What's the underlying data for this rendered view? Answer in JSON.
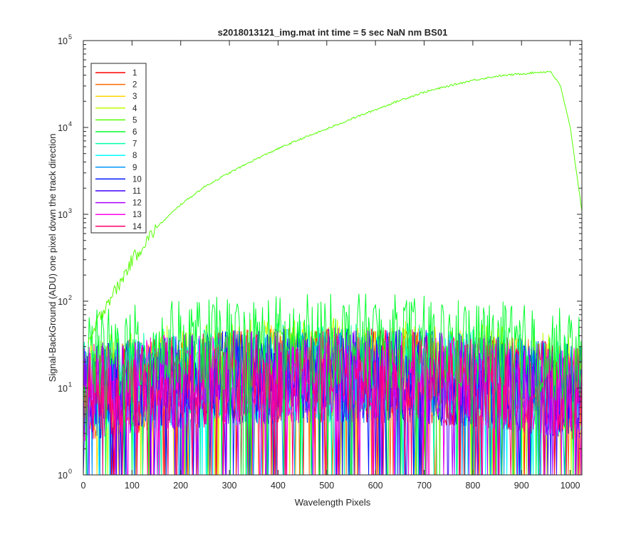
{
  "chart_data": {
    "type": "line",
    "title": "s2018013121_img.mat int time = 5 sec  NaN nm BS01",
    "xlabel": "Wavelength Pixels",
    "ylabel": "Signal-BackGround (ADU) one pixel down the track direction",
    "xlim": [
      0,
      1024
    ],
    "ylim": [
      1,
      100000
    ],
    "yscale": "log",
    "x_ticks": [
      0,
      100,
      200,
      300,
      400,
      500,
      600,
      700,
      800,
      900,
      1000
    ],
    "x_tick_labels": [
      "0",
      "100",
      "200",
      "300",
      "400",
      "500",
      "600",
      "700",
      "800",
      "900",
      "1000"
    ],
    "y_ticks": [
      1,
      10,
      100,
      1000,
      10000,
      100000
    ],
    "y_tick_labels": [
      {
        "base": "10",
        "exp": "0"
      },
      {
        "base": "10",
        "exp": "1"
      },
      {
        "base": "10",
        "exp": "2"
      },
      {
        "base": "10",
        "exp": "3"
      },
      {
        "base": "10",
        "exp": "4"
      },
      {
        "base": "10",
        "exp": "5"
      }
    ],
    "grid": false,
    "legend_location": "top-left",
    "series": [
      {
        "name": "1",
        "color": "#ff0000",
        "level": 10,
        "pattern": "noise"
      },
      {
        "name": "2",
        "color": "#ff6a00",
        "level": 10,
        "pattern": "noise"
      },
      {
        "name": "3",
        "color": "#ffd500",
        "level": 11,
        "pattern": "noise"
      },
      {
        "name": "4",
        "color": "#bfff00",
        "level": 13,
        "pattern": "noise"
      },
      {
        "name": "5",
        "color": "#55ff00",
        "anchors_x": [
          10,
          30,
          50,
          75,
          100,
          150,
          200,
          250,
          300,
          350,
          400,
          450,
          500,
          550,
          600,
          650,
          700,
          750,
          800,
          850,
          900,
          930,
          960,
          980,
          1000,
          1010,
          1024
        ],
        "anchors_y": [
          30,
          60,
          100,
          160,
          300,
          700,
          1300,
          2100,
          3000,
          4200,
          5700,
          7500,
          9600,
          12500,
          16000,
          20500,
          25500,
          30000,
          35000,
          39000,
          41500,
          43000,
          44000,
          30000,
          10000,
          4000,
          1100
        ]
      },
      {
        "name": "6",
        "color": "#00ff2a",
        "level": 25,
        "pattern": "noise"
      },
      {
        "name": "7",
        "color": "#00ffaa",
        "level": 12,
        "pattern": "noise"
      },
      {
        "name": "8",
        "color": "#00ffff",
        "level": 10,
        "pattern": "noise"
      },
      {
        "name": "9",
        "color": "#0095ff",
        "level": 10,
        "pattern": "noise"
      },
      {
        "name": "10",
        "color": "#0015ff",
        "level": 10,
        "pattern": "noise"
      },
      {
        "name": "11",
        "color": "#4000ff",
        "level": 10,
        "pattern": "noise"
      },
      {
        "name": "12",
        "color": "#aa00ff",
        "level": 10,
        "pattern": "noise"
      },
      {
        "name": "13",
        "color": "#ff00ea",
        "level": 10,
        "pattern": "noise"
      },
      {
        "name": "14",
        "color": "#ff006a",
        "level": 10,
        "pattern": "noise"
      }
    ]
  }
}
